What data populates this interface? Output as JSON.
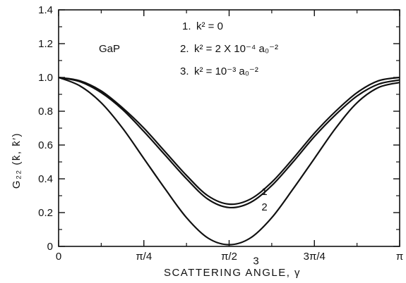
{
  "chart_data": {
    "type": "line",
    "title": "",
    "xlabel": "SCATTERING ANGLE, γ",
    "ylabel": "G₂₂ (k̂, k̂′)",
    "xlim": [
      0,
      3.14159
    ],
    "ylim": [
      0,
      1.4
    ],
    "grid": false,
    "x_ticks": [
      {
        "value": 0,
        "label": "0"
      },
      {
        "value": 0.7854,
        "label": "π/4"
      },
      {
        "value": 1.5708,
        "label": "π/2"
      },
      {
        "value": 2.3562,
        "label": "3π/4"
      },
      {
        "value": 3.14159,
        "label": "π"
      }
    ],
    "y_ticks": [
      {
        "value": 0,
        "label": "0"
      },
      {
        "value": 0.2,
        "label": "0.2"
      },
      {
        "value": 0.4,
        "label": "0.4"
      },
      {
        "value": 0.6,
        "label": "0.6"
      },
      {
        "value": 0.8,
        "label": "0.8"
      },
      {
        "value": 1.0,
        "label": "1.0"
      },
      {
        "value": 1.2,
        "label": "1.2"
      },
      {
        "value": 1.4,
        "label": "1.4"
      }
    ],
    "annotation": "GaP",
    "legend": {
      "placement": "top-center",
      "entries": [
        {
          "number": "1.",
          "text": "k² = 0"
        },
        {
          "number": "2.",
          "text": "k² = 2 X 10⁻⁴ a₀⁻²"
        },
        {
          "number": "3.",
          "text": "k² = 10⁻³ a₀⁻²"
        }
      ]
    },
    "series": [
      {
        "label": "1",
        "x": [
          0,
          0.1963,
          0.3927,
          0.589,
          0.7854,
          0.9817,
          1.1781,
          1.3744,
          1.5708,
          1.7671,
          1.9635,
          2.1598,
          2.3562,
          2.5525,
          2.7489,
          2.9452,
          3.14159
        ],
        "y": [
          1.0,
          0.98,
          0.92,
          0.82,
          0.7,
          0.56,
          0.42,
          0.3,
          0.25,
          0.28,
          0.38,
          0.52,
          0.67,
          0.8,
          0.91,
          0.98,
          1.0
        ]
      },
      {
        "label": "2",
        "x": [
          0,
          0.1963,
          0.3927,
          0.589,
          0.7854,
          0.9817,
          1.1781,
          1.3744,
          1.5708,
          1.7671,
          1.9635,
          2.1598,
          2.3562,
          2.5525,
          2.7489,
          2.9452,
          3.14159
        ],
        "y": [
          1.0,
          0.975,
          0.91,
          0.81,
          0.68,
          0.54,
          0.4,
          0.28,
          0.23,
          0.26,
          0.36,
          0.5,
          0.65,
          0.78,
          0.89,
          0.96,
          0.985
        ]
      },
      {
        "label": "3",
        "x": [
          0,
          0.1963,
          0.3927,
          0.589,
          0.7854,
          0.9817,
          1.1781,
          1.3744,
          1.5708,
          1.7671,
          1.9635,
          2.1598,
          2.3562,
          2.5525,
          2.7489,
          2.9452,
          3.14159
        ],
        "y": [
          1.0,
          0.95,
          0.85,
          0.7,
          0.52,
          0.34,
          0.17,
          0.05,
          0.01,
          0.05,
          0.17,
          0.34,
          0.52,
          0.7,
          0.85,
          0.94,
          0.97
        ]
      }
    ]
  }
}
